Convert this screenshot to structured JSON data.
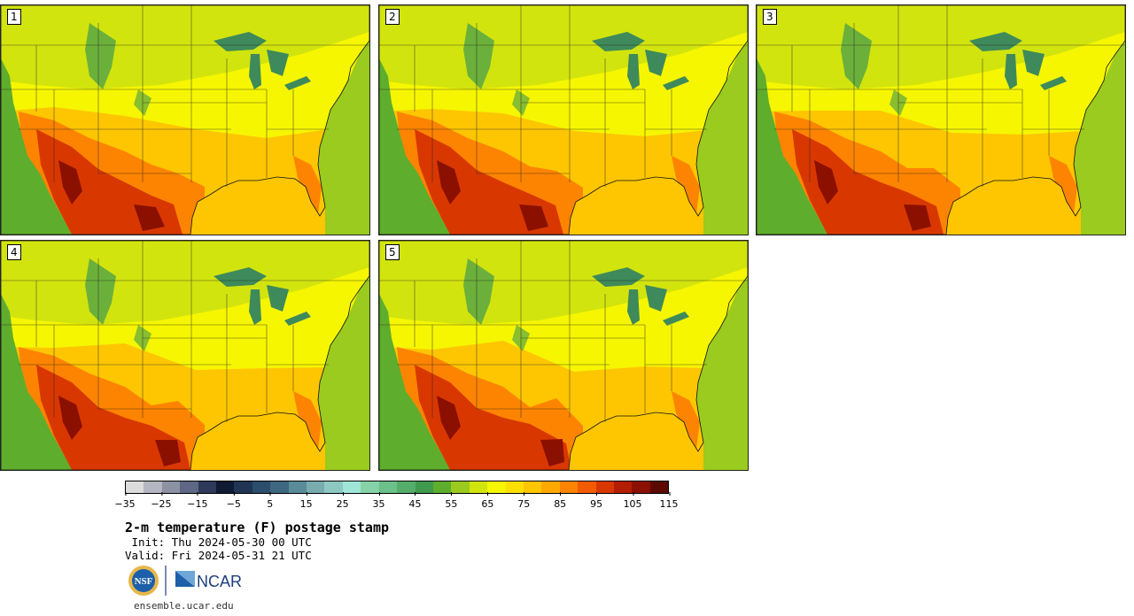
{
  "panels": [
    {
      "label": "1",
      "variant": 0
    },
    {
      "label": "2",
      "variant": 1
    },
    {
      "label": "3",
      "variant": 2
    },
    {
      "label": "4",
      "variant": 3
    },
    {
      "label": "5",
      "variant": 4
    }
  ],
  "colorbar": {
    "colors": [
      "#dcdcdc",
      "#b4b7c2",
      "#8c92a4",
      "#5e6783",
      "#2e3a5a",
      "#0f1a33",
      "#203554",
      "#2c4d6c",
      "#3e6780",
      "#5a8b99",
      "#79abaf",
      "#8dc8c2",
      "#9fe6d6",
      "#86d2a8",
      "#6cc08a",
      "#55ad6c",
      "#3f9a4e",
      "#5fad2c",
      "#9acb1e",
      "#d2e40e",
      "#f6f600",
      "#fde000",
      "#fdc600",
      "#fea800",
      "#fd8400",
      "#f35b00",
      "#d83800",
      "#b31d00",
      "#8c1000",
      "#5c0a00"
    ],
    "ticks": [
      "−35",
      "−25",
      "−15",
      "−5",
      "5",
      "15",
      "25",
      "35",
      "45",
      "55",
      "65",
      "75",
      "85",
      "95",
      "105",
      "115"
    ]
  },
  "title": "2-m temperature (F) postage stamp",
  "init": " Init: Thu 2024-05-30 00 UTC",
  "valid": "Valid: Fri 2024-05-31 21 UTC",
  "logos": {
    "nsf": "NSF",
    "ncar": "NCAR"
  },
  "url": "ensemble.ucar.edu",
  "map_colors": {
    "ocean_gulf": "#fdc600",
    "ocean_pacific": "#5fad2c",
    "ocean_atlantic": "#9acb1e",
    "cool": "#d2e40e",
    "mild": "#f6f600",
    "warm": "#fdc600",
    "hot": "#fd8400",
    "very_hot": "#d83800",
    "extreme": "#8c1000",
    "mountain": "#3f9a4e",
    "lake": "#3e8a5a"
  }
}
